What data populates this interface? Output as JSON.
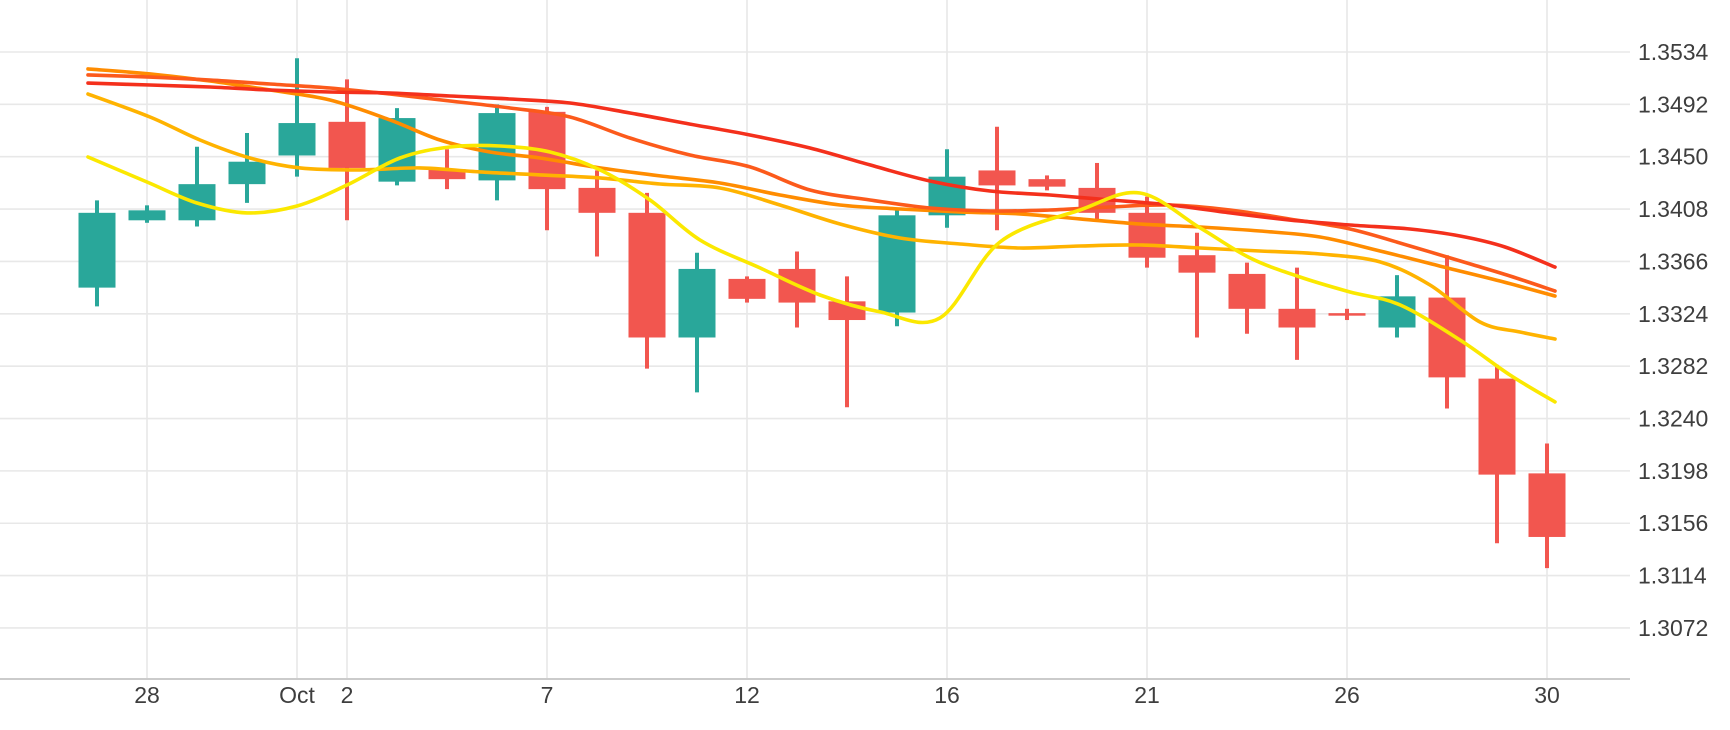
{
  "chart_data": {
    "type": "candlestick",
    "title": "",
    "instrument_hint": "",
    "grid": true,
    "legend": "none",
    "ylim": [
      1.3031,
      1.3576
    ],
    "y_axis_side": "right",
    "y_ticks": [
      "1.3534",
      "1.3492",
      "1.3450",
      "1.3408",
      "1.3366",
      "1.3324",
      "1.3282",
      "1.3240",
      "1.3198",
      "1.3156",
      "1.3114",
      "1.3072"
    ],
    "x_tick_labels": [
      "28",
      "Oct",
      "2",
      "7",
      "12",
      "16",
      "21",
      "26",
      "30"
    ],
    "x_tick_candle_indices": [
      1,
      4,
      5,
      9,
      13,
      17,
      21,
      25,
      29
    ],
    "candles": [
      {
        "open": 1.3345,
        "high": 1.3415,
        "low": 1.333,
        "close": 1.3405
      },
      {
        "open": 1.3399,
        "high": 1.3411,
        "low": 1.3397,
        "close": 1.3407
      },
      {
        "open": 1.3399,
        "high": 1.3458,
        "low": 1.3394,
        "close": 1.3428
      },
      {
        "open": 1.3428,
        "high": 1.3469,
        "low": 1.3413,
        "close": 1.3446
      },
      {
        "open": 1.3451,
        "high": 1.3529,
        "low": 1.3434,
        "close": 1.3477
      },
      {
        "open": 1.3478,
        "high": 1.3512,
        "low": 1.3399,
        "close": 1.3441
      },
      {
        "open": 1.343,
        "high": 1.3489,
        "low": 1.3427,
        "close": 1.3481
      },
      {
        "open": 1.344,
        "high": 1.3456,
        "low": 1.3424,
        "close": 1.3432
      },
      {
        "open": 1.3431,
        "high": 1.3492,
        "low": 1.3415,
        "close": 1.3485
      },
      {
        "open": 1.3486,
        "high": 1.349,
        "low": 1.3391,
        "close": 1.3424
      },
      {
        "open": 1.3425,
        "high": 1.3439,
        "low": 1.337,
        "close": 1.3405
      },
      {
        "open": 1.3405,
        "high": 1.3421,
        "low": 1.328,
        "close": 1.3305
      },
      {
        "open": 1.3305,
        "high": 1.3373,
        "low": 1.3261,
        "close": 1.336
      },
      {
        "open": 1.3352,
        "high": 1.3354,
        "low": 1.3333,
        "close": 1.3336
      },
      {
        "open": 1.336,
        "high": 1.3374,
        "low": 1.3313,
        "close": 1.3333
      },
      {
        "open": 1.3334,
        "high": 1.3354,
        "low": 1.3249,
        "close": 1.3319
      },
      {
        "open": 1.3325,
        "high": 1.3409,
        "low": 1.3314,
        "close": 1.3403
      },
      {
        "open": 1.3403,
        "high": 1.3456,
        "low": 1.3393,
        "close": 1.3434
      },
      {
        "open": 1.3439,
        "high": 1.3474,
        "low": 1.3391,
        "close": 1.3427
      },
      {
        "open": 1.3432,
        "high": 1.3435,
        "low": 1.3423,
        "close": 1.3426
      },
      {
        "open": 1.3425,
        "high": 1.3445,
        "low": 1.34,
        "close": 1.3405
      },
      {
        "open": 1.3405,
        "high": 1.3418,
        "low": 1.3361,
        "close": 1.3369
      },
      {
        "open": 1.3371,
        "high": 1.3389,
        "low": 1.3305,
        "close": 1.3357
      },
      {
        "open": 1.3356,
        "high": 1.3365,
        "low": 1.3308,
        "close": 1.3328
      },
      {
        "open": 1.3328,
        "high": 1.3361,
        "low": 1.3287,
        "close": 1.3313
      },
      {
        "open": 1.33245,
        "high": 1.3328,
        "low": 1.3319,
        "close": 1.33225
      },
      {
        "open": 1.3313,
        "high": 1.3355,
        "low": 1.3305,
        "close": 1.3338
      },
      {
        "open": 1.3337,
        "high": 1.3371,
        "low": 1.3248,
        "close": 1.3273
      },
      {
        "open": 1.3272,
        "high": 1.3283,
        "low": 1.314,
        "close": 1.3195
      },
      {
        "open": 1.3196,
        "high": 1.322,
        "low": 1.312,
        "close": 1.3145
      }
    ],
    "series": [
      {
        "name": "ma-line-gold",
        "color": "#FFB300",
        "points": [
          [
            88,
            1.35003
          ],
          [
            150,
            1.34819
          ],
          [
            200,
            1.34634
          ],
          [
            250,
            1.3449
          ],
          [
            300,
            1.3441
          ],
          [
            360,
            1.34394
          ],
          [
            420,
            1.3441
          ],
          [
            480,
            1.34378
          ],
          [
            540,
            1.34354
          ],
          [
            600,
            1.3433
          ],
          [
            660,
            1.34281
          ],
          [
            720,
            1.34249
          ],
          [
            780,
            1.34113
          ],
          [
            840,
            1.3396
          ],
          [
            900,
            1.33848
          ],
          [
            960,
            1.338
          ],
          [
            1020,
            1.33768
          ],
          [
            1080,
            1.33784
          ],
          [
            1140,
            1.33792
          ],
          [
            1200,
            1.33768
          ],
          [
            1260,
            1.33744
          ],
          [
            1320,
            1.3372
          ],
          [
            1380,
            1.33656
          ],
          [
            1430,
            1.33471
          ],
          [
            1480,
            1.33174
          ],
          [
            1520,
            1.33094
          ],
          [
            1555,
            1.33038
          ]
        ]
      },
      {
        "name": "ma-line-orange",
        "color": "#FF8C00",
        "points": [
          [
            88,
            1.35204
          ],
          [
            150,
            1.35164
          ],
          [
            210,
            1.35107
          ],
          [
            270,
            1.35035
          ],
          [
            330,
            1.34955
          ],
          [
            390,
            1.34795
          ],
          [
            440,
            1.34634
          ],
          [
            490,
            1.34538
          ],
          [
            540,
            1.3449
          ],
          [
            600,
            1.3441
          ],
          [
            660,
            1.34346
          ],
          [
            720,
            1.34289
          ],
          [
            780,
            1.34193
          ],
          [
            840,
            1.34113
          ],
          [
            900,
            1.34081
          ],
          [
            960,
            1.34057
          ],
          [
            1020,
            1.34041
          ],
          [
            1080,
            1.34001
          ],
          [
            1140,
            1.3396
          ],
          [
            1200,
            1.33936
          ],
          [
            1260,
            1.33904
          ],
          [
            1320,
            1.33856
          ],
          [
            1380,
            1.33744
          ],
          [
            1440,
            1.33623
          ],
          [
            1500,
            1.33503
          ],
          [
            1555,
            1.33383
          ]
        ]
      },
      {
        "name": "ma-line-orange-red",
        "color": "#FC5A1B",
        "points": [
          [
            88,
            1.35156
          ],
          [
            150,
            1.35139
          ],
          [
            210,
            1.35115
          ],
          [
            270,
            1.35083
          ],
          [
            330,
            1.35051
          ],
          [
            390,
            1.35003
          ],
          [
            450,
            1.34947
          ],
          [
            510,
            1.34891
          ],
          [
            570,
            1.34819
          ],
          [
            630,
            1.3465
          ],
          [
            690,
            1.34514
          ],
          [
            750,
            1.34418
          ],
          [
            810,
            1.34233
          ],
          [
            870,
            1.34153
          ],
          [
            930,
            1.34089
          ],
          [
            990,
            1.34065
          ],
          [
            1050,
            1.34073
          ],
          [
            1110,
            1.34097
          ],
          [
            1170,
            1.34113
          ],
          [
            1230,
            1.34073
          ],
          [
            1290,
            1.34
          ],
          [
            1350,
            1.3392
          ],
          [
            1410,
            1.33784
          ],
          [
            1470,
            1.3364
          ],
          [
            1510,
            1.33543
          ],
          [
            1555,
            1.33423
          ]
        ]
      },
      {
        "name": "ma-line-red",
        "color": "#F4301C",
        "points": [
          [
            88,
            1.35091
          ],
          [
            150,
            1.35075
          ],
          [
            210,
            1.35059
          ],
          [
            270,
            1.35035
          ],
          [
            330,
            1.35019
          ],
          [
            390,
            1.35011
          ],
          [
            450,
            1.34987
          ],
          [
            510,
            1.34963
          ],
          [
            570,
            1.34931
          ],
          [
            630,
            1.34851
          ],
          [
            690,
            1.34762
          ],
          [
            750,
            1.34674
          ],
          [
            810,
            1.3457
          ],
          [
            870,
            1.34434
          ],
          [
            930,
            1.34305
          ],
          [
            990,
            1.34225
          ],
          [
            1050,
            1.34193
          ],
          [
            1110,
            1.34153
          ],
          [
            1170,
            1.34113
          ],
          [
            1230,
            1.34049
          ],
          [
            1290,
            1.33992
          ],
          [
            1350,
            1.33952
          ],
          [
            1410,
            1.3392
          ],
          [
            1460,
            1.33864
          ],
          [
            1505,
            1.33776
          ],
          [
            1555,
            1.33615
          ]
        ]
      },
      {
        "name": "ma-line-yellow",
        "color": "#FBE800",
        "points": [
          [
            88,
            1.34498
          ],
          [
            147,
            1.34297
          ],
          [
            197,
            1.34129
          ],
          [
            247,
            1.34049
          ],
          [
            297,
            1.34105
          ],
          [
            347,
            1.34273
          ],
          [
            400,
            1.3449
          ],
          [
            450,
            1.34578
          ],
          [
            500,
            1.34586
          ],
          [
            550,
            1.34538
          ],
          [
            600,
            1.34394
          ],
          [
            650,
            1.34153
          ],
          [
            700,
            1.33832
          ],
          [
            760,
            1.33608
          ],
          [
            820,
            1.33391
          ],
          [
            880,
            1.33255
          ],
          [
            940,
            1.33207
          ],
          [
            1000,
            1.33816
          ],
          [
            1080,
            1.34073
          ],
          [
            1140,
            1.34209
          ],
          [
            1200,
            1.3393
          ],
          [
            1250,
            1.33688
          ],
          [
            1300,
            1.33535
          ],
          [
            1350,
            1.33415
          ],
          [
            1400,
            1.33311
          ],
          [
            1460,
            1.3303
          ],
          [
            1510,
            1.32749
          ],
          [
            1555,
            1.32533
          ]
        ]
      }
    ],
    "colors": {
      "up_candle": "#29A79A",
      "down_candle": "#F2564F",
      "grid_line": "#E8E8E8",
      "axis_baseline": "#CBCBCB",
      "label_text": "#3E3E3E",
      "background": "#FFFFFF"
    }
  }
}
